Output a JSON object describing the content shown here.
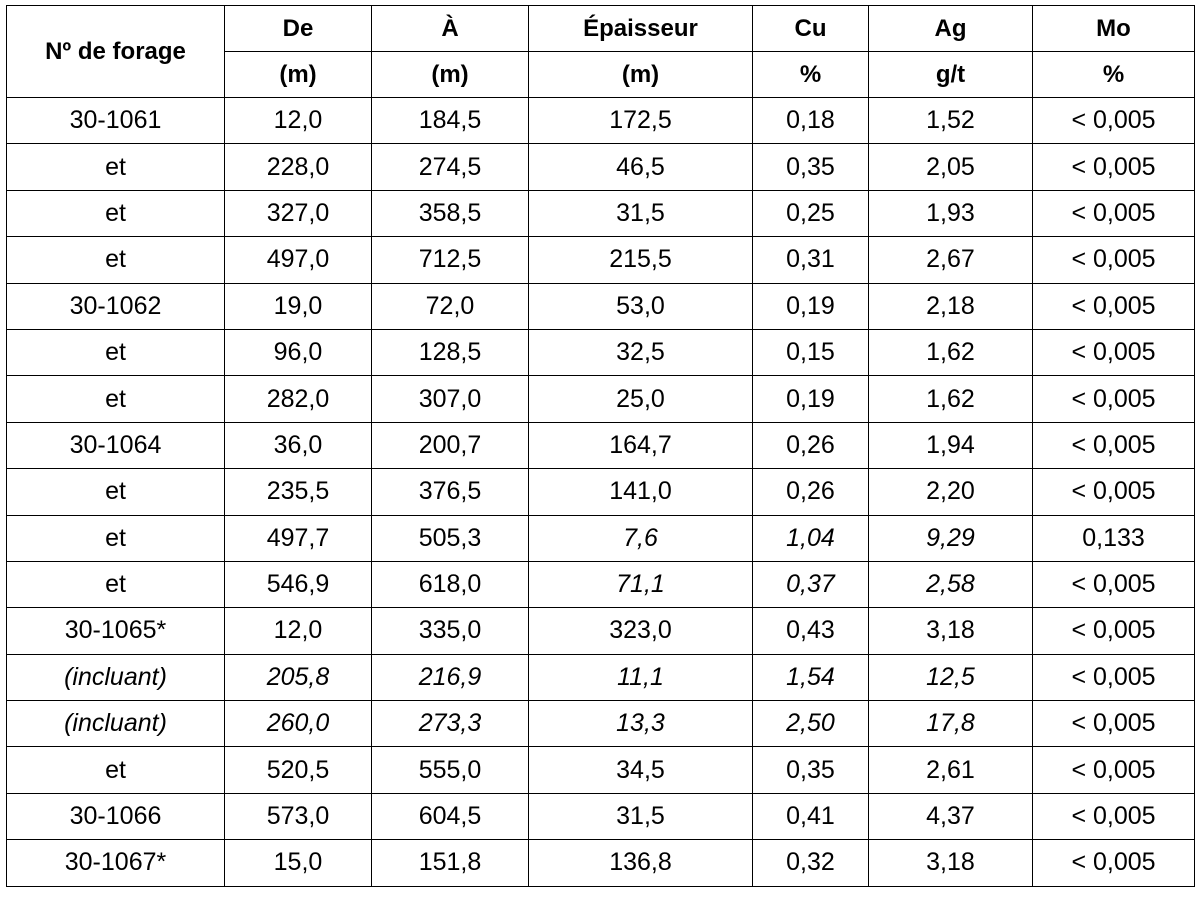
{
  "table": {
    "header": [
      [
        "Nº de forage",
        "De",
        "À",
        "Épaisseur",
        "Cu",
        "Ag",
        "Mo"
      ],
      [
        "(m)",
        "(m)",
        "(m)",
        "%",
        "g/t",
        "%"
      ]
    ],
    "rows": [
      [
        "30-1061",
        "12,0",
        "184,5",
        "172,5",
        "0,18",
        "1,52",
        "< 0,005"
      ],
      [
        "et",
        "228,0",
        "274,5",
        "46,5",
        "0,35",
        "2,05",
        "< 0,005"
      ],
      [
        "et",
        "327,0",
        "358,5",
        "31,5",
        "0,25",
        "1,93",
        "< 0,005"
      ],
      [
        "et",
        "497,0",
        "712,5",
        "215,5",
        "0,31",
        "2,67",
        "< 0,005"
      ],
      [
        "30-1062",
        "19,0",
        "72,0",
        "53,0",
        "0,19",
        "2,18",
        "< 0,005"
      ],
      [
        "et",
        "96,0",
        "128,5",
        "32,5",
        "0,15",
        "1,62",
        "< 0,005"
      ],
      [
        "et",
        "282,0",
        "307,0",
        "25,0",
        "0,19",
        "1,62",
        "< 0,005"
      ],
      [
        "30-1064",
        "36,0",
        "200,7",
        "164,7",
        "0,26",
        "1,94",
        "< 0,005"
      ],
      [
        "et",
        "235,5",
        "376,5",
        "141,0",
        "0,26",
        "2,20",
        "< 0,005"
      ],
      [
        "et",
        "497,7",
        "505,3",
        "7,6",
        "1,04",
        "9,29",
        "0,133"
      ],
      [
        "et",
        "546,9",
        "618,0",
        "71,1",
        "0,37",
        "2,58",
        "< 0,005"
      ],
      [
        "30-1065*",
        "12,0",
        "335,0",
        "323,0",
        "0,43",
        "3,18",
        "< 0,005"
      ],
      [
        "(incluant)",
        "205,8",
        "216,9",
        "11,1",
        "1,54",
        "12,5",
        "< 0,005"
      ],
      [
        "(incluant)",
        "260,0",
        "273,3",
        "13,3",
        "2,50",
        "17,8",
        "< 0,005"
      ],
      [
        "et",
        "520,5",
        "555,0",
        "34,5",
        "0,35",
        "2,61",
        "< 0,005"
      ],
      [
        "30-1066",
        "573,0",
        "604,5",
        "31,5",
        "0,41",
        "4,37",
        "< 0,005"
      ],
      [
        "30-1067*",
        "15,0",
        "151,8",
        "136,8",
        "0,32",
        "3,18",
        "< 0,005"
      ]
    ]
  }
}
